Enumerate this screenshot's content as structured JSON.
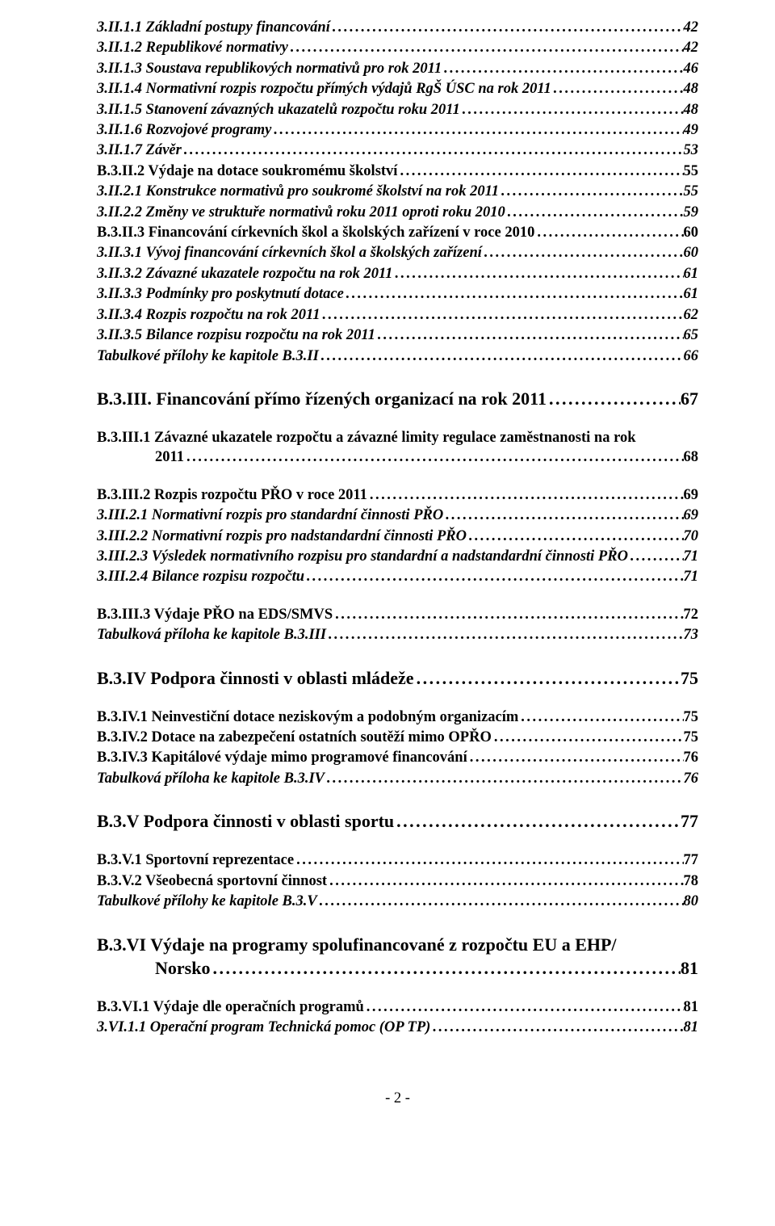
{
  "group1": [
    {
      "label": "3.II.1.1 Základní postupy financování",
      "page": "42",
      "style": "italic"
    },
    {
      "label": "3.II.1.2 Republikové normativy",
      "page": "42",
      "style": "italic"
    },
    {
      "label": "3.II.1.3 Soustava republikových normativů pro rok 2011",
      "page": "46",
      "style": "italic"
    },
    {
      "label": "3.II.1.4 Normativní rozpis rozpočtu přímých výdajů RgŠ ÚSC na rok 2011",
      "page": "48",
      "style": "italic"
    },
    {
      "label": "3.II.1.5 Stanovení závazných ukazatelů rozpočtu roku 2011",
      "page": "48",
      "style": "italic"
    },
    {
      "label": "3.II.1.6 Rozvojové programy",
      "page": "49",
      "style": "italic"
    },
    {
      "label": "3.II.1.7 Závěr",
      "page": "53",
      "style": "italic"
    },
    {
      "label": "B.3.II.2  Výdaje na dotace soukromému školství",
      "page": "55",
      "style": "bold"
    },
    {
      "label": "3.II.2.1 Konstrukce normativů pro soukromé školství na rok 2011",
      "page": "55",
      "style": "italic"
    },
    {
      "label": "3.II.2.2 Změny ve struktuře normativů roku 2011 oproti roku 2010",
      "page": "59",
      "style": "italic"
    },
    {
      "label": "B.3.II.3   Financování církevních škol a školských zařízení v roce 2010",
      "page": "60",
      "style": "bold"
    },
    {
      "label": "3.II.3.1 Vývoj financování církevních škol a školských zařízení",
      "page": "60",
      "style": "italic"
    },
    {
      "label": "3.II.3.2 Závazné ukazatele rozpočtu na rok 2011",
      "page": "61",
      "style": "italic"
    },
    {
      "label": "3.II.3.3 Podmínky pro poskytnutí dotace",
      "page": "61",
      "style": "italic"
    },
    {
      "label": "3.II.3.4 Rozpis rozpočtu na rok 2011",
      "page": "62",
      "style": "italic"
    },
    {
      "label": "3.II.3.5 Bilance rozpisu rozpočtu na rok 2011",
      "page": "65",
      "style": "italic"
    },
    {
      "label": "Tabulkové přílohy ke kapitole B.3.II",
      "page": "66",
      "style": "italic"
    }
  ],
  "h_b3iii": {
    "label": "B.3.III. Financování přímo řízených organizací na rok 2011",
    "page": "67"
  },
  "b3iii1": {
    "line1": "B.3.III.1 Závazné   ukazatele rozpočtu a závazné limity regulace zaměstnanosti   na   rok",
    "line2_label": "2011",
    "line2_page": "68"
  },
  "group2": [
    {
      "label": "B.3.III.2 Rozpis rozpočtu PŘO v roce 2011",
      "page": "69",
      "style": "bold"
    },
    {
      "label": "3.III.2.1 Normativní rozpis pro standardní činnosti PŘO",
      "page": "69",
      "style": "italic"
    },
    {
      "label": "3.III.2.2 Normativní rozpis pro nadstandardní činnosti PŘO",
      "page": "70",
      "style": "italic"
    },
    {
      "label": "3.III.2.3 Výsledek normativního rozpisu pro standardní a nadstandardní činnosti PŘO",
      "page": "71",
      "style": "italic"
    },
    {
      "label": "3.III.2.4 Bilance rozpisu rozpočtu",
      "page": "71",
      "style": "italic"
    }
  ],
  "group3": [
    {
      "label": "B.3.III.3  Výdaje PŘO na EDS/SMVS",
      "page": "72",
      "style": "bold"
    },
    {
      "label": "Tabulková příloha ke kapitole B.3.III",
      "page": "73",
      "style": "italic"
    }
  ],
  "h_b3iv": {
    "label": "B.3.IV Podpora činnosti v oblasti mládeže",
    "page": "75"
  },
  "group4": [
    {
      "label": "B.3.IV.1 Neinvestiční dotace neziskovým a podobným organizacím",
      "page": "75",
      "style": "bold"
    },
    {
      "label": "B.3.IV.2 Dotace na zabezpečení ostatních soutěží  mimo OPŘO",
      "page": "75",
      "style": "bold"
    },
    {
      "label": "B.3.IV.3 Kapitálové výdaje mimo programové financování",
      "page": "76",
      "style": "bold"
    },
    {
      "label": "Tabulková příloha ke kapitole B.3.IV",
      "page": "76",
      "style": "italic"
    }
  ],
  "h_b3v": {
    "label": "B.3.V Podpora činnosti v oblasti sportu",
    "page": "77"
  },
  "group5": [
    {
      "label": "B.3.V.1  Sportovní reprezentace",
      "page": "77",
      "style": "bold"
    },
    {
      "label": "B.3.V.2  Všeobecná sportovní činnost",
      "page": "78",
      "style": "bold"
    },
    {
      "label": "Tabulkové přílohy ke kapitole B.3.V",
      "page": "80",
      "style": "italic"
    }
  ],
  "h_b3vi": {
    "line1": "B.3.VI Výdaje na programy spolufinancované z rozpočtu EU a EHP/",
    "line2_label": "Norsko",
    "line2_page": "81"
  },
  "group6": [
    {
      "label": "B.3.VI.1 Výdaje dle operačních programů",
      "page": "81",
      "style": "bold"
    },
    {
      "label": "3.VI.1.1  Operační program Technická pomoc (OP TP)",
      "page": "81",
      "style": "italic"
    }
  ],
  "footer": "- 2 -"
}
